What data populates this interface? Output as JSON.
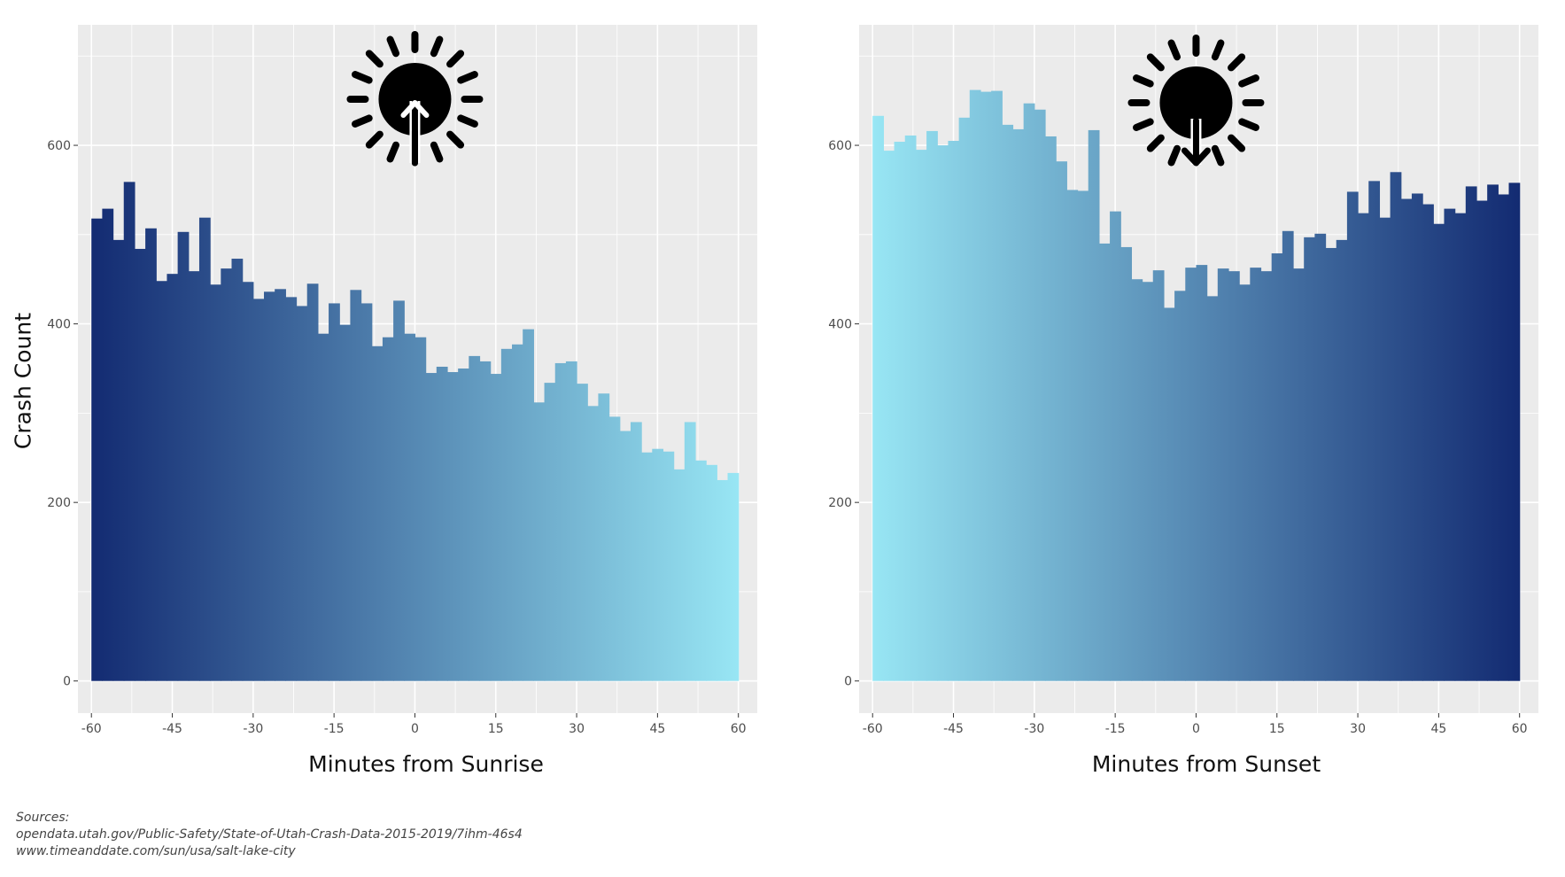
{
  "y_axis_title": "Crash Count",
  "sources": {
    "label": "Sources:",
    "lines": [
      "opendata.utah.gov/Public-Safety/State-of-Utah-Crash-Data-2015-2019/7ihm-46s4",
      "www.timeanddate.com/sun/usa/salt-lake-city"
    ]
  },
  "colors": {
    "panel_bg": "#ebebeb",
    "grid": "#ffffff",
    "dark_blue": "#132b72",
    "light_blue": "#98e6f4"
  },
  "icons": [
    "sunrise-icon",
    "sunset-icon"
  ],
  "chart_data": [
    {
      "type": "bar",
      "xlabel": "Minutes from Sunrise",
      "ylabel": "Crash Count",
      "xlim": [
        -62.5,
        63.5
      ],
      "ylim": [
        -36,
        735
      ],
      "x_ticks": [
        -60,
        -45,
        -30,
        -15,
        0,
        15,
        30,
        45,
        60
      ],
      "y_ticks": [
        0,
        200,
        400,
        600
      ],
      "bin_width": 2,
      "x": [
        -60,
        -58,
        -56,
        -54,
        -52,
        -50,
        -48,
        -46,
        -44,
        -42,
        -40,
        -38,
        -36,
        -34,
        -32,
        -30,
        -28,
        -26,
        -24,
        -22,
        -20,
        -18,
        -16,
        -14,
        -12,
        -10,
        -8,
        -6,
        -4,
        -2,
        0,
        2,
        4,
        6,
        8,
        10,
        12,
        14,
        16,
        18,
        20,
        22,
        24,
        26,
        28,
        30,
        32,
        34,
        36,
        38,
        40,
        42,
        44,
        46,
        48,
        50,
        52,
        54,
        56,
        58
      ],
      "values": [
        518,
        529,
        494,
        559,
        484,
        507,
        448,
        456,
        503,
        459,
        519,
        444,
        462,
        473,
        447,
        428,
        436,
        439,
        430,
        420,
        445,
        389,
        423,
        399,
        438,
        423,
        375,
        385,
        426,
        389,
        385,
        345,
        352,
        346,
        350,
        364,
        358,
        344,
        372,
        377,
        394,
        312,
        334,
        356,
        358,
        333,
        308,
        322,
        296,
        280,
        290,
        256,
        260,
        257,
        237,
        290,
        247,
        242,
        225,
        233
      ],
      "gradient": [
        "#132b72",
        "#98e6f4"
      ],
      "icon": "sunrise-icon"
    },
    {
      "type": "bar",
      "xlabel": "Minutes from Sunset",
      "ylabel": "",
      "xlim": [
        -62.5,
        63.5
      ],
      "ylim": [
        -36,
        735
      ],
      "x_ticks": [
        -60,
        -45,
        -30,
        -15,
        0,
        15,
        30,
        45,
        60
      ],
      "y_ticks": [
        0,
        200,
        400,
        600
      ],
      "bin_width": 2,
      "x": [
        -60,
        -58,
        -56,
        -54,
        -52,
        -50,
        -48,
        -46,
        -44,
        -42,
        -40,
        -38,
        -36,
        -34,
        -32,
        -30,
        -28,
        -26,
        -24,
        -22,
        -20,
        -18,
        -16,
        -14,
        -12,
        -10,
        -8,
        -6,
        -4,
        -2,
        0,
        2,
        4,
        6,
        8,
        10,
        12,
        14,
        16,
        18,
        20,
        22,
        24,
        26,
        28,
        30,
        32,
        34,
        36,
        38,
        40,
        42,
        44,
        46,
        48,
        50,
        52,
        54,
        56,
        58
      ],
      "values": [
        633,
        594,
        604,
        611,
        595,
        616,
        600,
        605,
        631,
        662,
        660,
        661,
        623,
        618,
        647,
        640,
        610,
        582,
        550,
        549,
        617,
        490,
        526,
        486,
        450,
        447,
        460,
        418,
        437,
        463,
        466,
        431,
        462,
        459,
        444,
        463,
        459,
        479,
        504,
        462,
        497,
        501,
        485,
        494,
        548,
        524,
        560,
        519,
        570,
        540,
        546,
        534,
        512,
        529,
        524,
        554,
        538,
        556,
        545,
        558
      ],
      "gradient": [
        "#98e6f4",
        "#132b72"
      ],
      "icon": "sunset-icon"
    }
  ]
}
